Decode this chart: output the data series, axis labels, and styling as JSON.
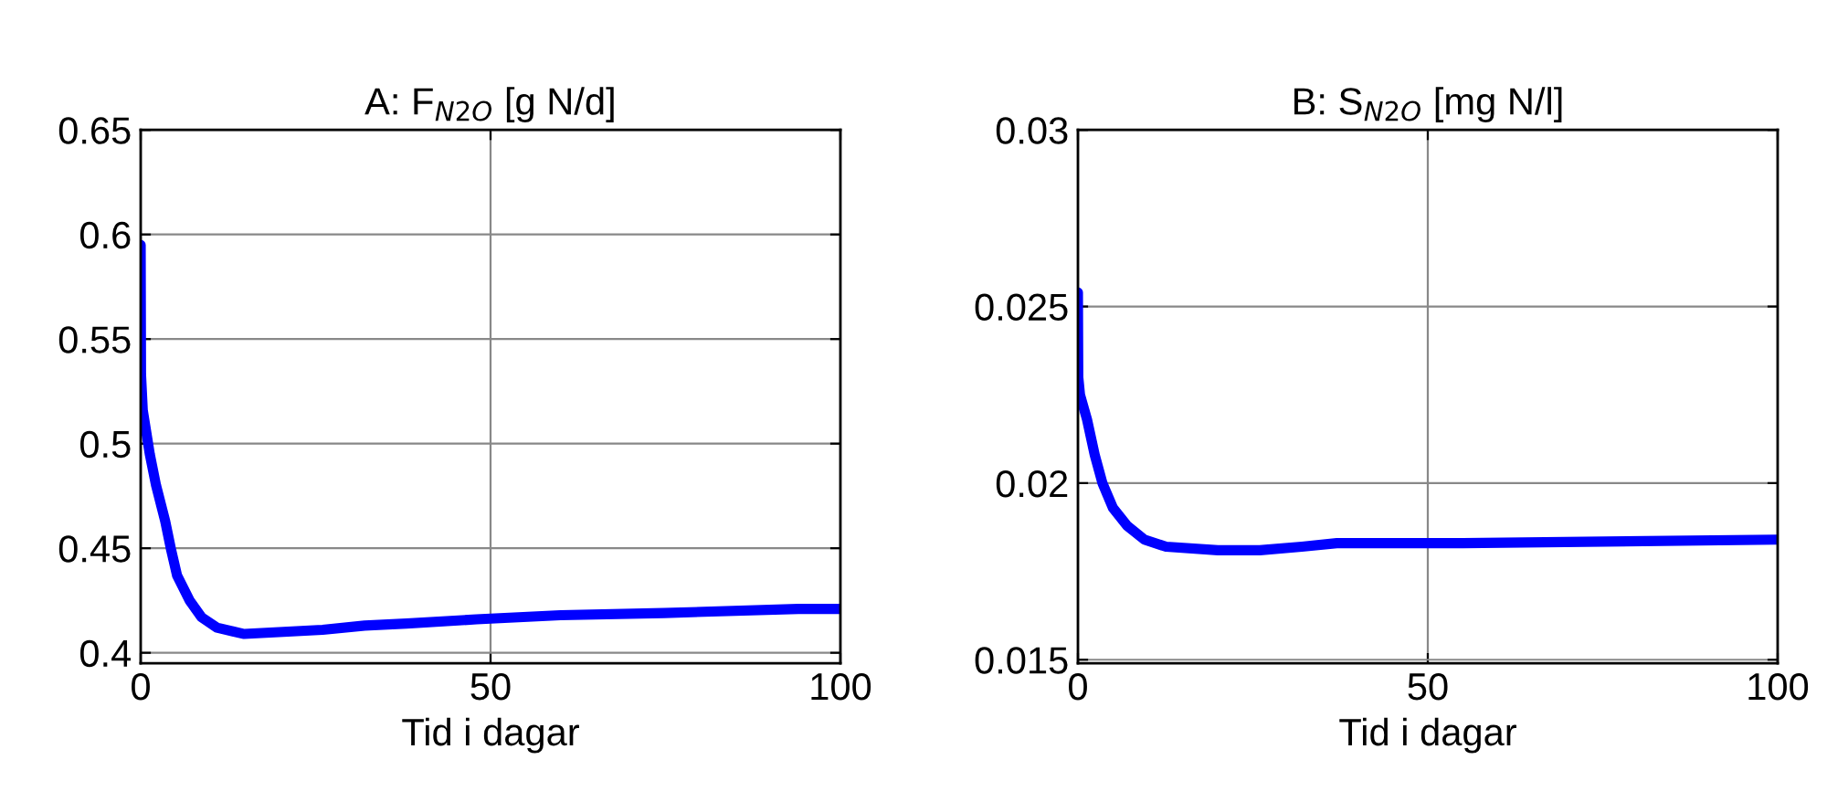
{
  "chart_data": [
    {
      "type": "line",
      "title": "A: F$_{N2O}$ [g N/d]",
      "xlabel": "Tid i dagar",
      "xlim": [
        0,
        100
      ],
      "xticks": [
        0,
        50,
        100
      ],
      "ylim": [
        0.395,
        0.65
      ],
      "yticks": [
        0.4,
        0.45,
        0.5,
        0.55,
        0.6,
        0.65
      ],
      "grid": true,
      "series": [
        {
          "color": "#0000ff",
          "x": [
            0,
            0.05,
            0.3,
            1.3,
            2.2,
            3.5,
            4.3,
            5.2,
            7,
            8.7,
            10.9,
            14.8,
            20.4,
            26,
            32,
            38,
            48,
            60,
            74.8,
            94,
            100
          ],
          "values": [
            0.595,
            0.533,
            0.516,
            0.495,
            0.48,
            0.463,
            0.45,
            0.437,
            0.425,
            0.417,
            0.412,
            0.409,
            0.41,
            0.411,
            0.413,
            0.414,
            0.416,
            0.418,
            0.419,
            0.421,
            0.421
          ]
        }
      ]
    },
    {
      "type": "line",
      "title": "B: S$_{N2O}$ [mg N/l]",
      "xlabel": "Tid i dagar",
      "xlim": [
        0,
        100
      ],
      "xticks": [
        0,
        50,
        100
      ],
      "ylim": [
        0.0149,
        0.03
      ],
      "yticks": [
        0.015,
        0.02,
        0.025,
        0.03
      ],
      "grid": true,
      "series": [
        {
          "color": "#0000ff",
          "x": [
            0,
            0.05,
            0.3,
            1.3,
            2.4,
            3.5,
            5,
            7,
            9.5,
            12.6,
            20,
            26,
            32,
            37,
            55,
            100
          ],
          "values": [
            0.0254,
            0.023,
            0.0225,
            0.0218,
            0.0208,
            0.02,
            0.0193,
            0.0188,
            0.0184,
            0.0182,
            0.0181,
            0.0181,
            0.0182,
            0.0183,
            0.0183,
            0.0184
          ]
        }
      ]
    }
  ]
}
